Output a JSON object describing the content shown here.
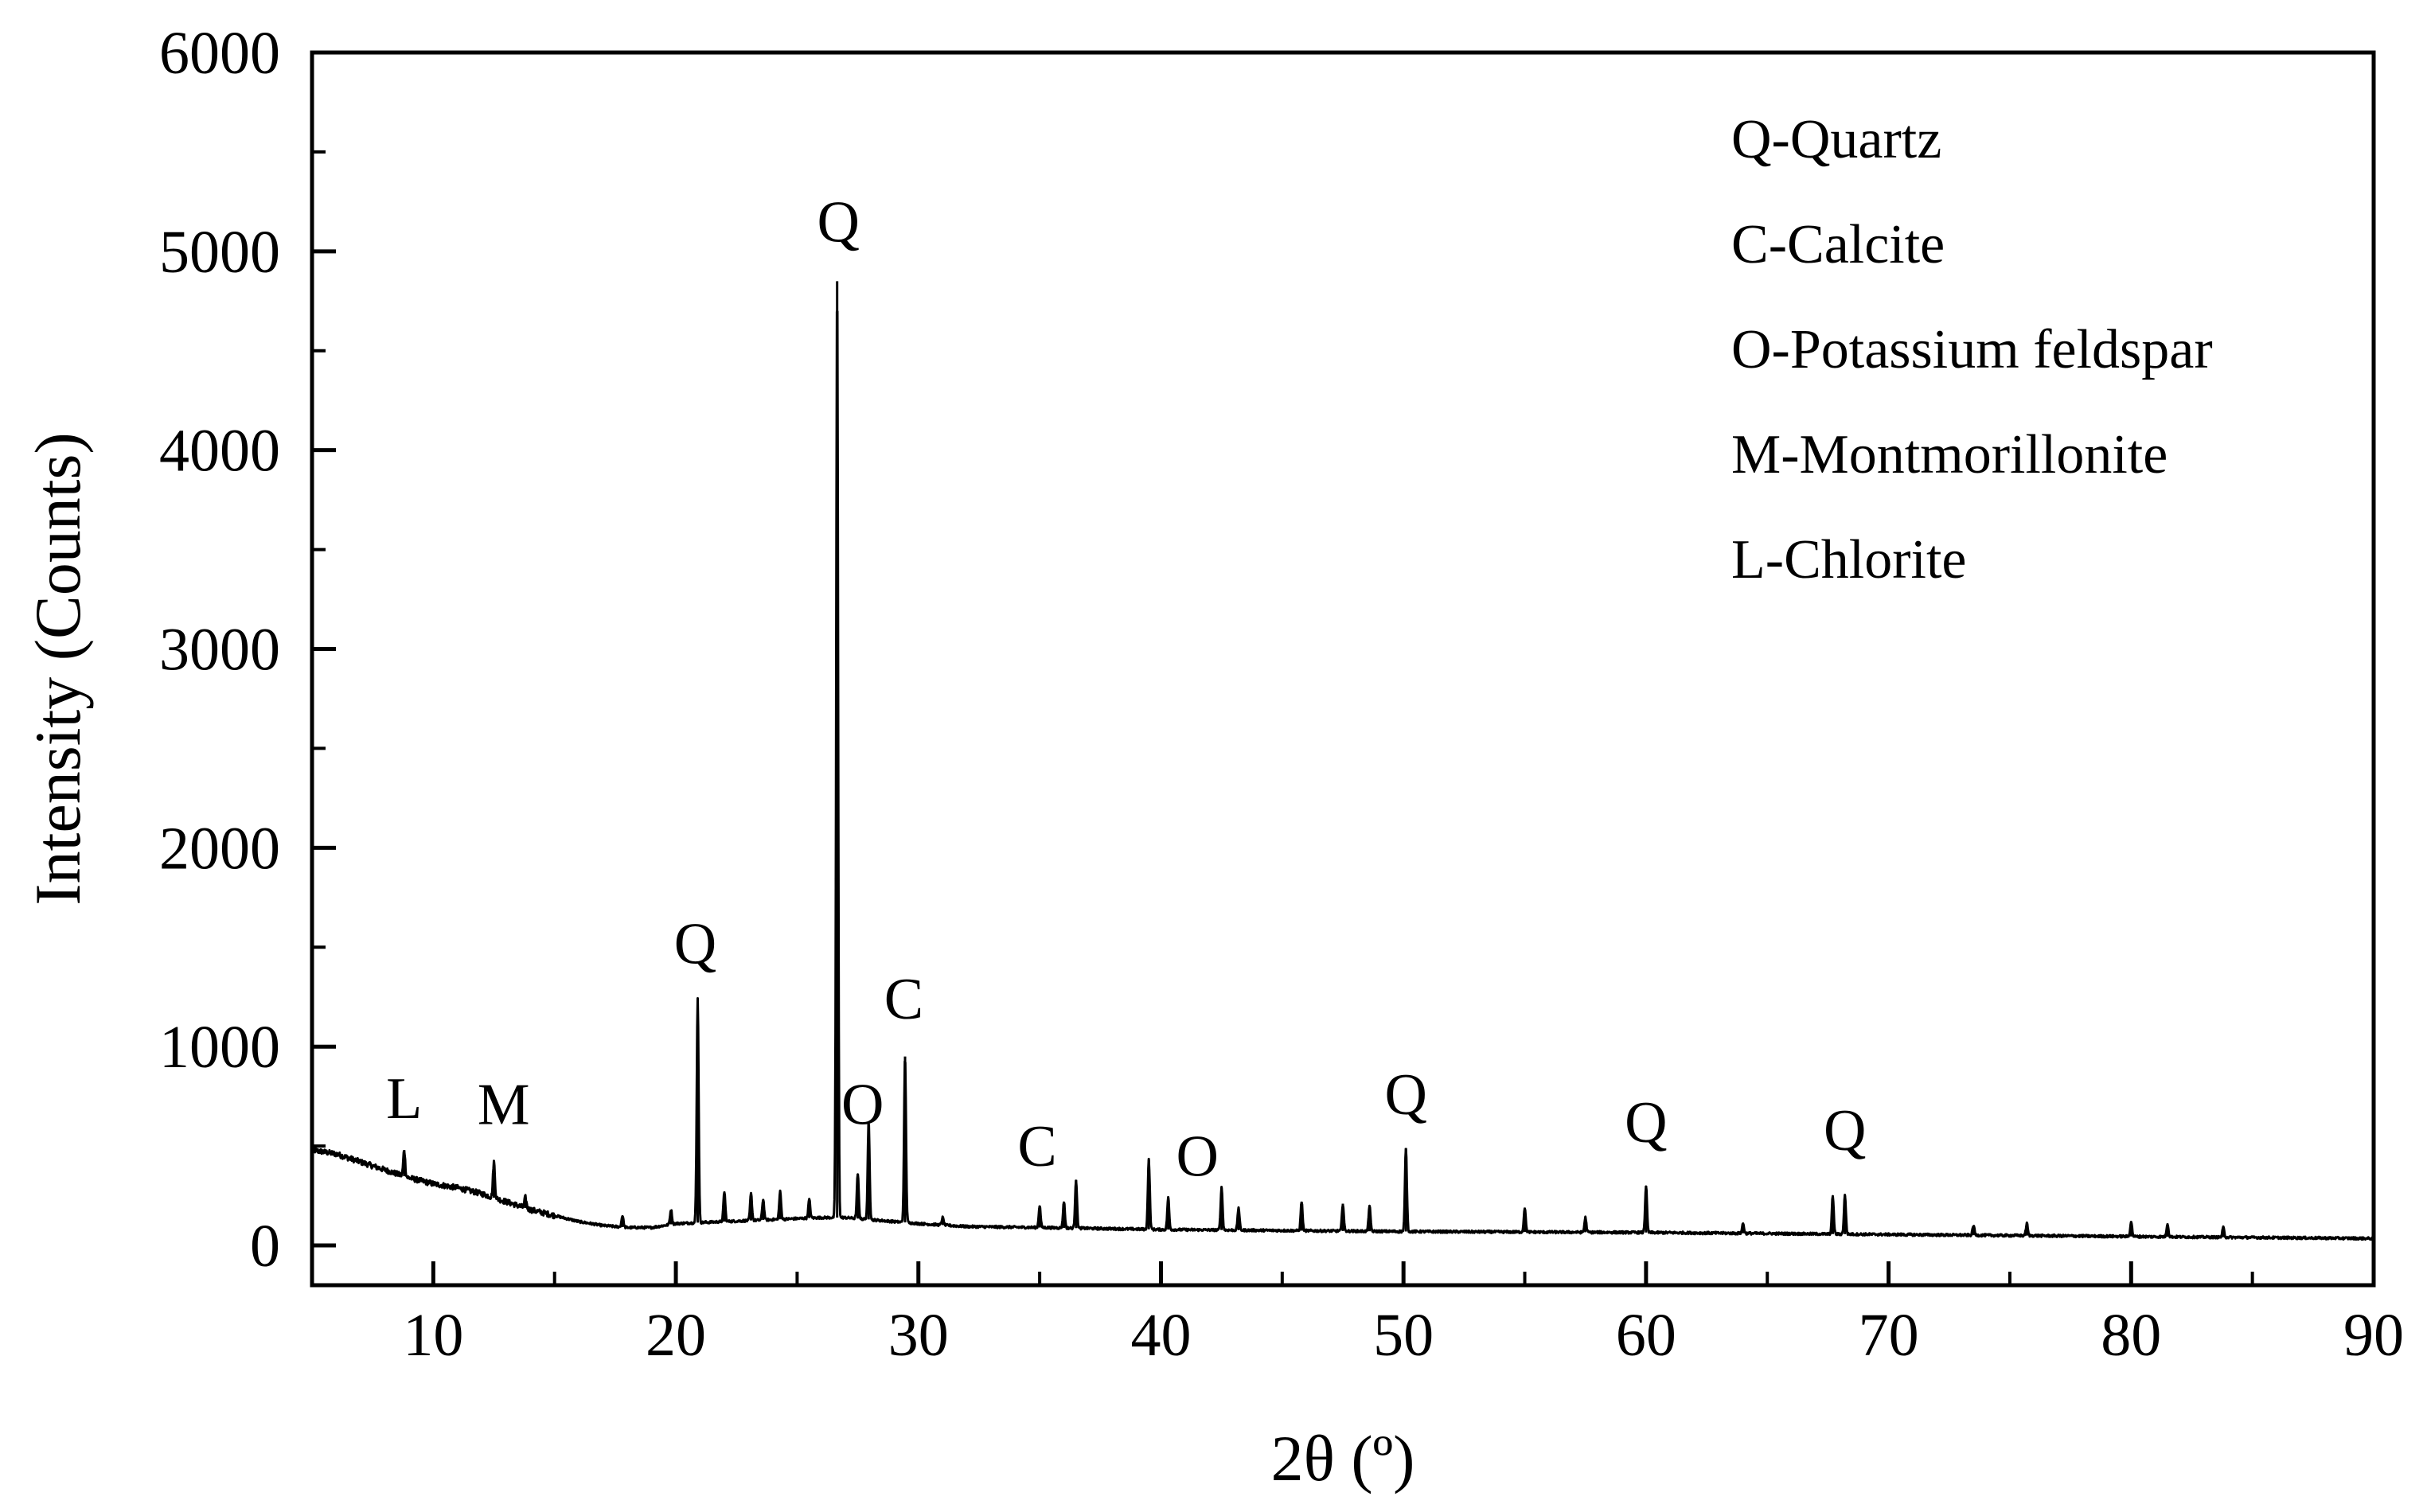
{
  "chart_data": {
    "type": "line",
    "title": "",
    "xlabel": "2θ (º)",
    "ylabel": "Intensity (Counts)",
    "xlim": [
      5,
      90
    ],
    "ylim": [
      -200,
      6000
    ],
    "xticks": [
      10,
      20,
      30,
      40,
      50,
      60,
      70,
      80,
      90
    ],
    "yticks": [
      0,
      1000,
      2000,
      3000,
      4000,
      5000,
      6000
    ],
    "grid": false,
    "legend_position": "top-right",
    "legend": [
      "Q-Quartz",
      "C-Calcite",
      "O-Potassium feldspar",
      "M-Montmorillonite",
      "L-Chlorite"
    ],
    "background": [
      [
        5,
        480
      ],
      [
        6,
        460
      ],
      [
        7,
        420
      ],
      [
        8,
        380
      ],
      [
        9,
        340
      ],
      [
        10,
        310
      ],
      [
        11,
        290
      ],
      [
        12,
        260
      ],
      [
        13,
        220
      ],
      [
        14,
        180
      ],
      [
        15,
        150
      ],
      [
        16,
        120
      ],
      [
        17,
        100
      ],
      [
        18,
        90
      ],
      [
        19,
        90
      ],
      [
        20,
        110
      ],
      [
        22,
        120
      ],
      [
        24,
        130
      ],
      [
        26,
        140
      ],
      [
        27,
        140
      ],
      [
        28,
        130
      ],
      [
        30,
        110
      ],
      [
        32,
        95
      ],
      [
        35,
        90
      ],
      [
        40,
        80
      ],
      [
        45,
        75
      ],
      [
        50,
        70
      ],
      [
        60,
        65
      ],
      [
        70,
        55
      ],
      [
        80,
        45
      ],
      [
        90,
        35
      ]
    ],
    "peaks": [
      {
        "x": 8.8,
        "y": 480
      },
      {
        "x": 12.5,
        "y": 420
      },
      {
        "x": 13.8,
        "y": 240
      },
      {
        "x": 17.8,
        "y": 150
      },
      {
        "x": 19.8,
        "y": 180
      },
      {
        "x": 20.9,
        "y": 1240
      },
      {
        "x": 22.0,
        "y": 270
      },
      {
        "x": 23.1,
        "y": 260
      },
      {
        "x": 23.6,
        "y": 230
      },
      {
        "x": 24.3,
        "y": 270
      },
      {
        "x": 25.5,
        "y": 230
      },
      {
        "x": 26.65,
        "y": 4850
      },
      {
        "x": 27.5,
        "y": 360
      },
      {
        "x": 27.95,
        "y": 620
      },
      {
        "x": 29.45,
        "y": 950
      },
      {
        "x": 31.0,
        "y": 140
      },
      {
        "x": 35.0,
        "y": 200
      },
      {
        "x": 36.0,
        "y": 220
      },
      {
        "x": 36.5,
        "y": 330
      },
      {
        "x": 39.5,
        "y": 430
      },
      {
        "x": 40.3,
        "y": 240
      },
      {
        "x": 42.5,
        "y": 290
      },
      {
        "x": 43.2,
        "y": 190
      },
      {
        "x": 45.8,
        "y": 220
      },
      {
        "x": 47.5,
        "y": 210
      },
      {
        "x": 48.6,
        "y": 200
      },
      {
        "x": 50.1,
        "y": 490
      },
      {
        "x": 55.0,
        "y": 190
      },
      {
        "x": 57.5,
        "y": 140
      },
      {
        "x": 60.0,
        "y": 300
      },
      {
        "x": 64.0,
        "y": 110
      },
      {
        "x": 67.7,
        "y": 250
      },
      {
        "x": 68.2,
        "y": 250
      },
      {
        "x": 73.5,
        "y": 100
      },
      {
        "x": 75.7,
        "y": 110
      },
      {
        "x": 80.0,
        "y": 120
      },
      {
        "x": 81.5,
        "y": 110
      },
      {
        "x": 83.8,
        "y": 90
      }
    ],
    "annotations": [
      {
        "text": "L",
        "x": 8.8,
        "y": 640
      },
      {
        "text": "M",
        "x": 12.9,
        "y": 610
      },
      {
        "text": "Q",
        "x": 20.8,
        "y": 1420
      },
      {
        "text": "Q",
        "x": 26.7,
        "y": 5050
      },
      {
        "text": "O",
        "x": 27.7,
        "y": 610
      },
      {
        "text": "C",
        "x": 29.4,
        "y": 1140
      },
      {
        "text": "C",
        "x": 34.9,
        "y": 400
      },
      {
        "text": "O",
        "x": 41.5,
        "y": 350
      },
      {
        "text": "Q",
        "x": 50.1,
        "y": 660
      },
      {
        "text": "Q",
        "x": 60.0,
        "y": 520
      },
      {
        "text": "Q",
        "x": 68.2,
        "y": 480
      }
    ]
  }
}
